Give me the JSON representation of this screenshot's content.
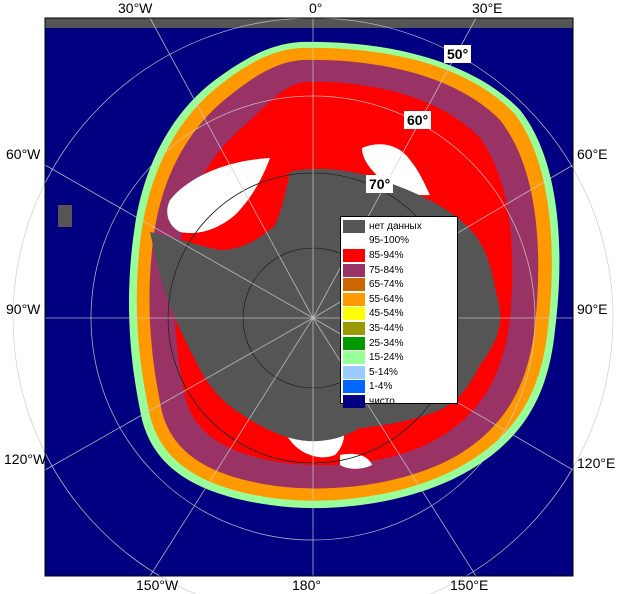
{
  "map": {
    "background": "#000080",
    "no_data_color": "#555555"
  },
  "longitude_labels": {
    "top": [
      "30°W",
      "0°",
      "30°E"
    ],
    "left": [
      "60°W",
      "90°W",
      "120°W"
    ],
    "right": [
      "60°E",
      "90°E",
      "120°E"
    ],
    "bottom": [
      "150°W",
      "180°",
      "150°E"
    ]
  },
  "latitude_labels": [
    "50°",
    "60°",
    "70°"
  ],
  "legend": [
    {
      "label": "нет данных",
      "color": "#555555"
    },
    {
      "label": "95-100%",
      "color": "#ffffff"
    },
    {
      "label": "85-94%",
      "color": "#ff0000"
    },
    {
      "label": "75-84%",
      "color": "#993366"
    },
    {
      "label": "65-74%",
      "color": "#cc6600"
    },
    {
      "label": "55-64%",
      "color": "#ff9900"
    },
    {
      "label": "45-54%",
      "color": "#ffff00"
    },
    {
      "label": "35-44%",
      "color": "#999900"
    },
    {
      "label": "25-34%",
      "color": "#009900"
    },
    {
      "label": "15-24%",
      "color": "#99ff99"
    },
    {
      "label": "5-14%",
      "color": "#99ccff"
    },
    {
      "label": "1-4%",
      "color": "#0066ff"
    },
    {
      "label": "чисто",
      "color": "#000080"
    }
  ]
}
